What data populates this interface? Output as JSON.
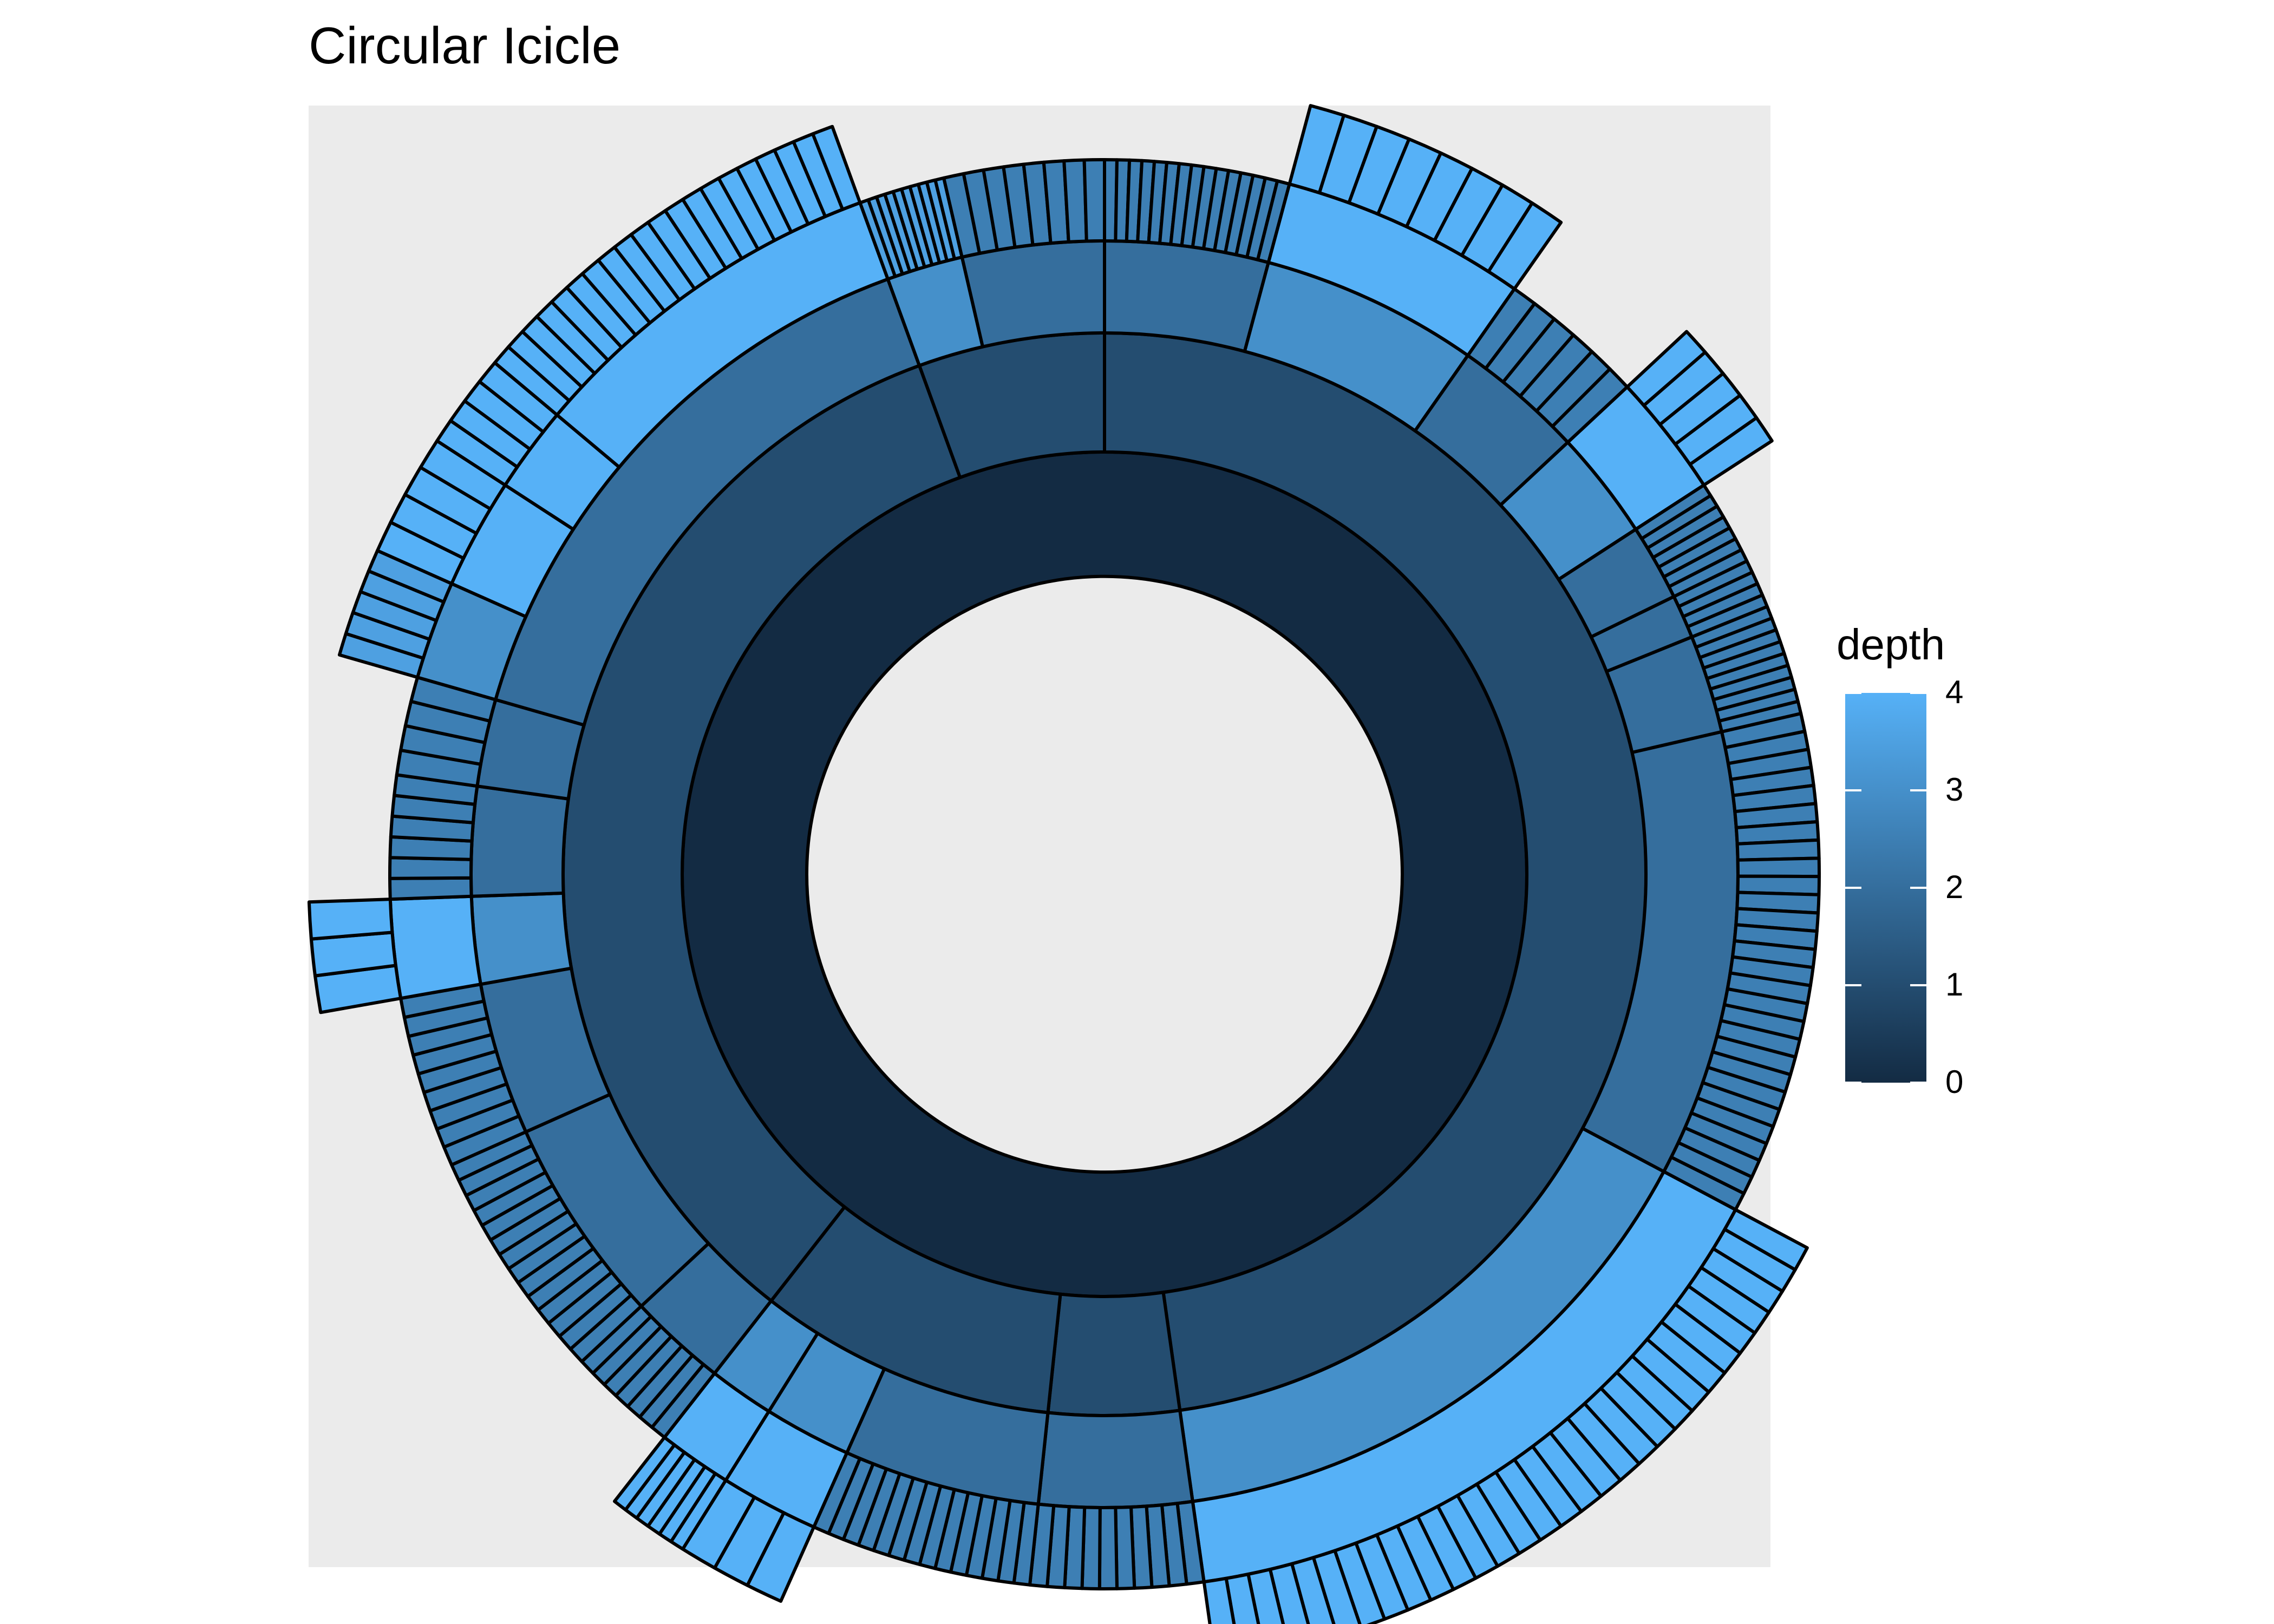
{
  "chart_data": {
    "type": "circular_icicle",
    "title": "Circular Icicle",
    "fill_scale": {
      "name": "depth",
      "low": "#132b43",
      "high": "#56b1f7",
      "limits": [
        0,
        4
      ],
      "breaks": [
        0,
        1,
        2,
        3,
        4
      ]
    },
    "background": "#ebebeb",
    "outline": "#000000",
    "rings": [
      {
        "depth": 0,
        "segments": [
          {
            "start_deg": 0,
            "end_deg": 360
          }
        ]
      },
      {
        "depth": 1,
        "segments": [
          {
            "start_deg": 0,
            "end_deg": 172,
            "kids": [
              {
                "start_deg": 0,
                "end_deg": 15,
                "leaves": 15
              },
              {
                "start_deg": 15,
                "end_deg": 35,
                "extend": 1,
                "kids": [
                  {
                    "start_deg": 15,
                    "end_deg": 35,
                    "leaves": 8
                  }
                ]
              },
              {
                "start_deg": 35,
                "end_deg": 47,
                "leaves": 6
              },
              {
                "start_deg": 47,
                "end_deg": 57,
                "extend": 1,
                "kids": [
                  {
                    "start_deg": 47,
                    "end_deg": 57,
                    "leaves": 5
                  }
                ]
              },
              {
                "start_deg": 57,
                "end_deg": 64,
                "leaves": 7
              },
              {
                "start_deg": 64,
                "end_deg": 68,
                "leaves": 4
              },
              {
                "start_deg": 68,
                "end_deg": 77,
                "leaves": 9
              },
              {
                "start_deg": 77,
                "end_deg": 118,
                "leaves": 28
              },
              {
                "start_deg": 118,
                "end_deg": 172,
                "extend": 1,
                "kids": [
                  {
                    "start_deg": 118,
                    "end_deg": 172,
                    "leaves": 30
                  }
                ]
              }
            ]
          },
          {
            "start_deg": 172,
            "end_deg": 186,
            "kids": [
              {
                "start_deg": 172,
                "end_deg": 186,
                "leaves": 10
              }
            ]
          },
          {
            "start_deg": 186,
            "end_deg": 218,
            "kids": [
              {
                "start_deg": 186,
                "end_deg": 204,
                "leaves": 14
              },
              {
                "start_deg": 204,
                "end_deg": 212,
                "extend": 1,
                "kids": [
                  {
                    "start_deg": 204,
                    "end_deg": 212,
                    "leaves": 3
                  }
                ]
              },
              {
                "start_deg": 212,
                "end_deg": 218,
                "extend": 1,
                "kids": [
                  {
                    "start_deg": 212,
                    "end_deg": 218,
                    "leaves": 6
                  }
                ]
              }
            ]
          },
          {
            "start_deg": 218,
            "end_deg": 340,
            "kids": [
              {
                "start_deg": 218,
                "end_deg": 227,
                "leaves": 7
              },
              {
                "start_deg": 227,
                "end_deg": 246,
                "leaves": 14
              },
              {
                "start_deg": 246,
                "end_deg": 260,
                "leaves": 9
              },
              {
                "start_deg": 260,
                "end_deg": 268,
                "extend": 1,
                "kids": [
                  {
                    "start_deg": 260,
                    "end_deg": 268,
                    "leaves": 3
                  }
                ]
              },
              {
                "start_deg": 268,
                "end_deg": 278,
                "leaves": 6
              },
              {
                "start_deg": 278,
                "end_deg": 286,
                "leaves": 4
              },
              {
                "start_deg": 286,
                "end_deg": 340,
                "kids": [
                  {
                    "start_deg": 286,
                    "end_deg": 294,
                    "leaves": 5
                  },
                  {
                    "start_deg": 294,
                    "end_deg": 303,
                    "extend": 1,
                    "leaves": 4
                  },
                  {
                    "start_deg": 303,
                    "end_deg": 310,
                    "extend": 1,
                    "leaves": 4
                  },
                  {
                    "start_deg": 310,
                    "end_deg": 340,
                    "extend": 1,
                    "leaves": 20
                  }
                ]
              }
            ]
          },
          {
            "start_deg": 340,
            "end_deg": 360,
            "kids": [
              {
                "start_deg": 340,
                "end_deg": 347,
                "extend": 1,
                "leaves": 10
              },
              {
                "start_deg": 347,
                "end_deg": 360,
                "leaves": 8
              }
            ]
          }
        ]
      }
    ]
  }
}
